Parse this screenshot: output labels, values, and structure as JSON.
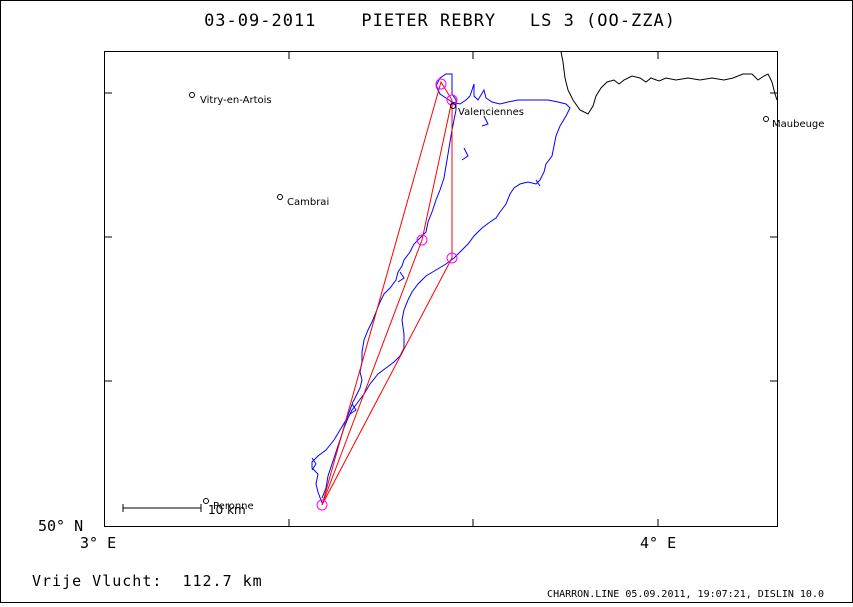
{
  "title": "03-09-2011    PIETER REBRY   LS 3 (OO-ZZA)",
  "axis": {
    "lat_label": "50° N",
    "lon_labels": [
      "3° E",
      "4° E"
    ]
  },
  "towns": [
    {
      "name": "Vitry-en-Artois"
    },
    {
      "name": "Valenciennes"
    },
    {
      "name": "Maubeuge"
    },
    {
      "name": "Cambrai"
    },
    {
      "name": "Peronne"
    }
  ],
  "scale_bar": {
    "label": "10 km"
  },
  "footer": {
    "left": "Vrije Vlucht:  112.7 km",
    "right": "CHARRON.LINE 05.09.2011, 19:07:21, DISLIN 10.0"
  },
  "colors": {
    "track": "#0000ff",
    "task": "#ff0000",
    "turnpoint": "#ff00ff",
    "border": "#000000",
    "background": "#ffffff"
  }
}
